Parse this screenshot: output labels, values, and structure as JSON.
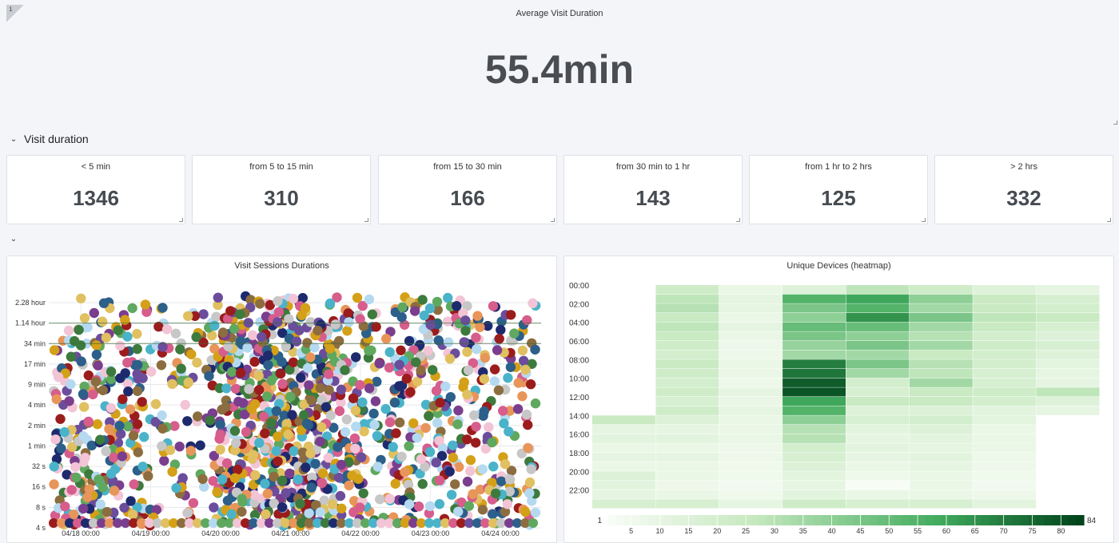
{
  "top": {
    "title": "Average Visit Duration",
    "value": "55.4min",
    "info_glyph": "i"
  },
  "rows": {
    "visit_duration": "Visit duration"
  },
  "stats": [
    {
      "label": "< 5 min",
      "value": "1346"
    },
    {
      "label": "from 5 to 15 min",
      "value": "310"
    },
    {
      "label": "from 15 to 30 min",
      "value": "166"
    },
    {
      "label": "from 30 min to 1 hr",
      "value": "143"
    },
    {
      "label": "from 1 hr to 2 hrs",
      "value": "125"
    },
    {
      "label": "> 2 hrs",
      "value": "332"
    }
  ],
  "scatter": {
    "title": "Visit Sessions Durations",
    "y_ticks": [
      "2.28 hour",
      "1.14 hour",
      "34 min",
      "17 min",
      "9 min",
      "4 min",
      "2 min",
      "1 min",
      "32 s",
      "16 s",
      "8 s",
      "4 s"
    ],
    "x_ticks": [
      "04/18 00:00",
      "04/19 00:00",
      "04/20 00:00",
      "04/21 00:00",
      "04/22 00:00",
      "04/23 00:00",
      "04/24 00:00"
    ],
    "palette": [
      "#2c5f8a",
      "#9b1c1c",
      "#d4a017",
      "#4ab3c9",
      "#7a3e8e",
      "#d65d8c",
      "#5fa85f",
      "#1e2a6e",
      "#e8955a",
      "#b5d9f0",
      "#8c6d3f",
      "#c7c7c7",
      "#f2c4d6",
      "#3d7a3d",
      "#e0c060",
      "#6b4d9c"
    ]
  },
  "heatmap": {
    "title": "Unique Devices (heatmap)",
    "y_ticks": [
      "00:00",
      "02:00",
      "04:00",
      "06:00",
      "08:00",
      "10:00",
      "12:00",
      "14:00",
      "16:00",
      "18:00",
      "20:00",
      "22:00"
    ],
    "legend_min": "1",
    "legend_max": "84",
    "legend_ticks": [
      "5",
      "10",
      "15",
      "20",
      "25",
      "30",
      "35",
      "40",
      "45",
      "50",
      "55",
      "60",
      "65",
      "70",
      "75",
      "80"
    ]
  },
  "chart_data": [
    {
      "type": "heatmap",
      "title": "Unique Devices (heatmap)",
      "rows": [
        "00:00",
        "01:00",
        "02:00",
        "03:00",
        "04:00",
        "05:00",
        "06:00",
        "07:00",
        "08:00",
        "09:00",
        "10:00",
        "11:00",
        "12:00",
        "13:00",
        "14:00",
        "15:00",
        "16:00",
        "17:00",
        "18:00",
        "19:00",
        "20:00",
        "21:00",
        "22:00",
        "23:00"
      ],
      "columns": 8,
      "range": [
        1,
        84
      ],
      "values": [
        [
          0,
          22,
          8,
          14,
          28,
          22,
          14,
          10
        ],
        [
          0,
          28,
          10,
          55,
          60,
          40,
          25,
          18
        ],
        [
          0,
          30,
          10,
          45,
          55,
          35,
          25,
          20
        ],
        [
          0,
          25,
          8,
          40,
          65,
          45,
          28,
          25
        ],
        [
          0,
          28,
          10,
          50,
          50,
          35,
          25,
          18
        ],
        [
          0,
          25,
          8,
          45,
          40,
          30,
          20,
          15
        ],
        [
          0,
          22,
          6,
          38,
          45,
          35,
          22,
          18
        ],
        [
          0,
          20,
          6,
          35,
          35,
          25,
          20,
          14
        ],
        [
          0,
          25,
          8,
          70,
          45,
          30,
          20,
          12
        ],
        [
          0,
          22,
          8,
          72,
          35,
          28,
          18,
          10
        ],
        [
          0,
          20,
          6,
          78,
          20,
          35,
          18,
          10
        ],
        [
          0,
          22,
          10,
          80,
          18,
          25,
          22,
          28
        ],
        [
          0,
          18,
          8,
          60,
          25,
          25,
          20,
          14
        ],
        [
          0,
          22,
          10,
          55,
          15,
          15,
          12,
          10
        ],
        [
          25,
          15,
          8,
          40,
          18,
          20,
          12,
          0
        ],
        [
          10,
          10,
          8,
          30,
          12,
          15,
          8,
          0
        ],
        [
          12,
          12,
          8,
          30,
          10,
          12,
          8,
          0
        ],
        [
          8,
          8,
          6,
          20,
          12,
          10,
          8,
          0
        ],
        [
          10,
          10,
          6,
          18,
          10,
          12,
          6,
          0
        ],
        [
          8,
          8,
          5,
          15,
          8,
          10,
          6,
          0
        ],
        [
          15,
          8,
          5,
          12,
          6,
          8,
          5,
          0
        ],
        [
          12,
          6,
          4,
          10,
          1,
          8,
          4,
          0
        ],
        [
          10,
          8,
          5,
          12,
          8,
          8,
          6,
          0
        ],
        [
          18,
          18,
          10,
          22,
          18,
          18,
          12,
          0
        ]
      ]
    }
  ]
}
